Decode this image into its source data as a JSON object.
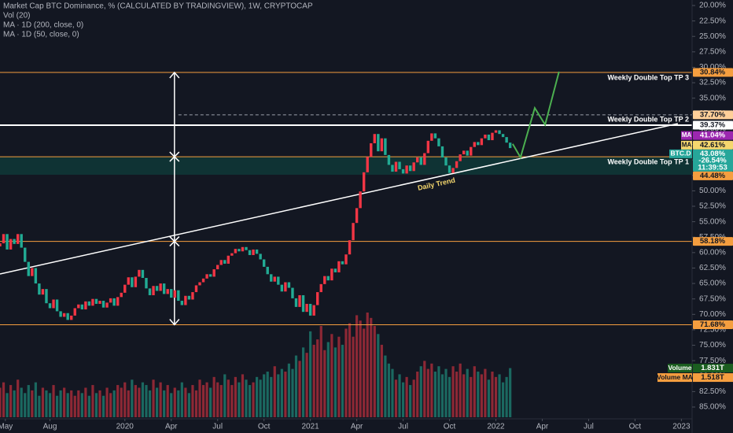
{
  "header": {
    "title": "Market Cap BTC Dominance, % (CALCULATED BY TRADINGVIEW), 1W, CRYPTOCAP",
    "indicators": [
      "Vol (20)",
      "MA · 1D (200, close, 0)",
      "MA · 1D (50, close, 0)"
    ]
  },
  "chart_data": {
    "type": "candlestick",
    "invert": true,
    "up_color": "#22ab94",
    "down_color": "#f23645",
    "xlim": [
      0,
      194
    ],
    "xticks": [
      {
        "value": 1.5,
        "label": "May"
      },
      {
        "value": 14,
        "label": "Aug"
      },
      {
        "value": 35,
        "label": "2020"
      },
      {
        "value": 48,
        "label": "Apr"
      },
      {
        "value": 61,
        "label": "Jul"
      },
      {
        "value": 74,
        "label": "Oct"
      },
      {
        "value": 87,
        "label": "2021"
      },
      {
        "value": 100,
        "label": "Apr"
      },
      {
        "value": 113,
        "label": "Jul"
      },
      {
        "value": 126,
        "label": "Oct"
      },
      {
        "value": 139,
        "label": "2022"
      },
      {
        "value": 152,
        "label": "Apr"
      },
      {
        "value": 165,
        "label": "Jul"
      },
      {
        "value": 178,
        "label": "Oct"
      },
      {
        "value": 191,
        "label": "2023"
      }
    ],
    "ylim": [
      20,
      85
    ],
    "yticks": [
      {
        "value": 20,
        "label": "20.00%"
      },
      {
        "value": 22.5,
        "label": "22.50%"
      },
      {
        "value": 25,
        "label": "25.00%"
      },
      {
        "value": 27.5,
        "label": "27.50%"
      },
      {
        "value": 30,
        "label": "30.00%"
      },
      {
        "value": 32.5,
        "label": "32.50%"
      },
      {
        "value": 35,
        "label": "35.00%"
      },
      {
        "value": 37.5,
        "label": "37.50%"
      },
      {
        "value": 40,
        "label": "40.00%"
      },
      {
        "value": 42.5,
        "label": "42.50%"
      },
      {
        "value": 45,
        "label": "45.00%"
      },
      {
        "value": 47.5,
        "label": "47.50%"
      },
      {
        "value": 50,
        "label": "50.00%"
      },
      {
        "value": 52.5,
        "label": "52.50%"
      },
      {
        "value": 55,
        "label": "55.00%"
      },
      {
        "value": 57.5,
        "label": "57.50%"
      },
      {
        "value": 60,
        "label": "60.00%"
      },
      {
        "value": 62.5,
        "label": "62.50%"
      },
      {
        "value": 65,
        "label": "65.00%"
      },
      {
        "value": 67.5,
        "label": "67.50%"
      },
      {
        "value": 70,
        "label": "70.00%"
      },
      {
        "value": 72.5,
        "label": "72.50%"
      },
      {
        "value": 75,
        "label": "75.00%"
      },
      {
        "value": 77.5,
        "label": "77.50%"
      },
      {
        "value": 80,
        "label": "80.00%"
      },
      {
        "value": 82.5,
        "label": "82.50%"
      },
      {
        "value": 85,
        "label": "85.00%"
      }
    ],
    "x": [
      0,
      1,
      2,
      3,
      4,
      5,
      6,
      7,
      8,
      9,
      10,
      11,
      12,
      13,
      14,
      15,
      16,
      17,
      18,
      19,
      20,
      21,
      22,
      23,
      24,
      25,
      26,
      27,
      28,
      29,
      30,
      31,
      32,
      33,
      34,
      35,
      36,
      37,
      38,
      39,
      40,
      41,
      42,
      43,
      44,
      45,
      46,
      47,
      48,
      49,
      50,
      51,
      52,
      53,
      54,
      55,
      56,
      57,
      58,
      59,
      60,
      61,
      62,
      63,
      64,
      65,
      66,
      67,
      68,
      69,
      70,
      71,
      72,
      73,
      74,
      75,
      76,
      77,
      78,
      79,
      80,
      81,
      82,
      83,
      84,
      85,
      86,
      87,
      88,
      89,
      90,
      91,
      92,
      93,
      94,
      95,
      96,
      97,
      98,
      99,
      100,
      101,
      102,
      103,
      104,
      105,
      106,
      107,
      108,
      109,
      110,
      111,
      112,
      113,
      114,
      115,
      116,
      117,
      118,
      119,
      120,
      121,
      122,
      123,
      124,
      125,
      126,
      127,
      128,
      129,
      130,
      131,
      132,
      133,
      134,
      135,
      136,
      137,
      138,
      139,
      140,
      141,
      142,
      143
    ],
    "open": 59.0,
    "close": [
      58.5,
      57.0,
      59.5,
      57.8,
      58.6,
      57.0,
      59.2,
      61.5,
      63.8,
      62.5,
      65.0,
      66.8,
      65.9,
      68.2,
      69.0,
      67.6,
      69.5,
      70.4,
      69.8,
      70.9,
      70.2,
      69.0,
      68.4,
      69.2,
      67.9,
      68.6,
      67.5,
      68.3,
      67.8,
      68.9,
      68.1,
      67.4,
      68.6,
      67.2,
      66.5,
      65.2,
      64.0,
      65.6,
      63.9,
      62.8,
      64.1,
      65.8,
      66.9,
      65.4,
      66.2,
      65.0,
      66.7,
      65.9,
      67.3,
      66.1,
      67.8,
      68.5,
      67.0,
      67.6,
      66.4,
      65.3,
      64.8,
      64.2,
      63.5,
      63.9,
      62.7,
      62.0,
      61.2,
      61.8,
      60.5,
      60.1,
      59.4,
      59.8,
      59.1,
      59.6,
      60.4,
      59.5,
      60.2,
      61.1,
      62.3,
      63.5,
      64.7,
      63.9,
      65.2,
      66.3,
      64.8,
      65.7,
      67.4,
      68.8,
      66.9,
      69.6,
      68.3,
      70.2,
      68.5,
      66.4,
      65.1,
      63.8,
      64.5,
      62.6,
      63.2,
      61.4,
      61.9,
      60.3,
      58.0,
      55.2,
      52.8,
      50.1,
      47.0,
      44.5,
      42.3,
      40.8,
      43.6,
      41.5,
      44.2,
      45.8,
      46.9,
      45.3,
      46.5,
      47.2,
      45.9,
      46.8,
      45.4,
      44.6,
      45.8,
      43.9,
      41.9,
      40.7,
      41.5,
      42.8,
      44.6,
      45.9,
      47.1,
      46.3,
      45.2,
      44.1,
      43.5,
      44.3,
      42.9,
      42.1,
      42.6,
      41.5,
      40.9,
      41.8,
      40.6,
      40.2,
      40.8,
      41.3,
      42.2,
      43.08
    ],
    "symbol": "BTC.D",
    "last_label": "43.08%",
    "change_label": "-26.54%",
    "countdown": "11:39:53",
    "ma_labels": [
      {
        "name": "MA",
        "value": 41.04,
        "label": "41.04%",
        "color": "#9c27b0"
      },
      {
        "name": "MA",
        "value": 42.61,
        "label": "42.61%",
        "color": "#f5d76e"
      }
    ],
    "levels": [
      {
        "value": 30.84,
        "label": "30.84%",
        "annotation": "Weekly Double Top TP 3",
        "color": "#f59e3f",
        "style": "solid"
      },
      {
        "value": 37.7,
        "label": "37.70%",
        "color": "#9aa0aa",
        "box": "#ffcf99",
        "style": "dashed",
        "from": 50
      },
      {
        "value": 39.37,
        "label": "39.37%",
        "annotation": "Weekly Double Top TP 2",
        "color": "#ffffff",
        "style": "thick"
      },
      {
        "value": 44.48,
        "label": "44.48%",
        "annotation": "Weekly Double Top TP 1",
        "color": "#f59e3f",
        "style": "solid"
      },
      {
        "value": 58.18,
        "label": "58.18%",
        "color": "#f59e3f",
        "style": "solid"
      },
      {
        "value": 71.68,
        "label": "71.68%",
        "color": "#f59e3f",
        "style": "solid"
      }
    ],
    "zone": [
      44.48,
      47.4
    ],
    "trend": {
      "label": "Daily Trend",
      "x": [
        0,
        190
      ],
      "values": [
        63.46,
        39.12
      ],
      "color": "#ffffff"
    },
    "projection": {
      "x": [
        143.7,
        145.9,
        149.9,
        152.8,
        156.7
      ],
      "values": [
        42.4,
        44.6,
        36.6,
        39.3,
        30.7
      ],
      "color": "#4caf50"
    },
    "measure": {
      "x": 48.9,
      "values": [
        30.84,
        71.68
      ],
      "marks": [
        44.48,
        58.18
      ]
    },
    "volume": {
      "name": "Volume",
      "ma_name": "Volume MA",
      "last_label": "1.831T",
      "ma_label": "1.518T",
      "values": [
        1.1,
        1.3,
        0.9,
        1.2,
        1.0,
        1.4,
        1.1,
        0.9,
        1.2,
        1.0,
        1.3,
        0.8,
        1.1,
        1.0,
        0.9,
        1.2,
        0.8,
        1.0,
        1.1,
        0.9,
        1.0,
        0.8,
        1.0,
        0.9,
        1.1,
        0.8,
        1.2,
        0.9,
        1.0,
        0.8,
        1.1,
        0.9,
        1.0,
        1.2,
        1.1,
        1.3,
        1.0,
        1.4,
        1.2,
        1.1,
        1.3,
        1.2,
        1.0,
        1.4,
        1.1,
        1.3,
        1.0,
        1.2,
        0.9,
        1.1,
        1.0,
        1.3,
        1.1,
        0.9,
        1.2,
        1.0,
        1.4,
        1.2,
        1.3,
        1.1,
        1.5,
        1.3,
        1.2,
        1.6,
        1.4,
        1.2,
        1.5,
        1.3,
        1.6,
        1.4,
        1.2,
        1.3,
        1.5,
        1.4,
        1.6,
        1.7,
        1.5,
        1.9,
        1.6,
        1.8,
        1.7,
        2.0,
        1.8,
        2.3,
        2.1,
        2.6,
        2.4,
        3.2,
        2.7,
        2.9,
        3.4,
        2.5,
        2.8,
        3.1,
        2.6,
        3.0,
        2.7,
        3.3,
        3.5,
        3.0,
        3.8,
        3.6,
        3.3,
        3.9,
        3.7,
        3.4,
        3.1,
        2.7,
        2.3,
        2.0,
        1.8,
        1.4,
        1.6,
        1.3,
        1.5,
        1.2,
        1.4,
        1.7,
        1.9,
        2.1,
        1.8,
        2.0,
        1.7,
        1.9,
        1.6,
        1.8,
        1.5,
        1.9,
        1.7,
        2.0,
        1.6,
        1.8,
        1.5,
        1.9,
        1.7,
        1.6,
        1.8,
        1.4,
        1.7,
        1.5,
        1.6,
        1.3,
        1.5,
        1.831
      ]
    }
  }
}
